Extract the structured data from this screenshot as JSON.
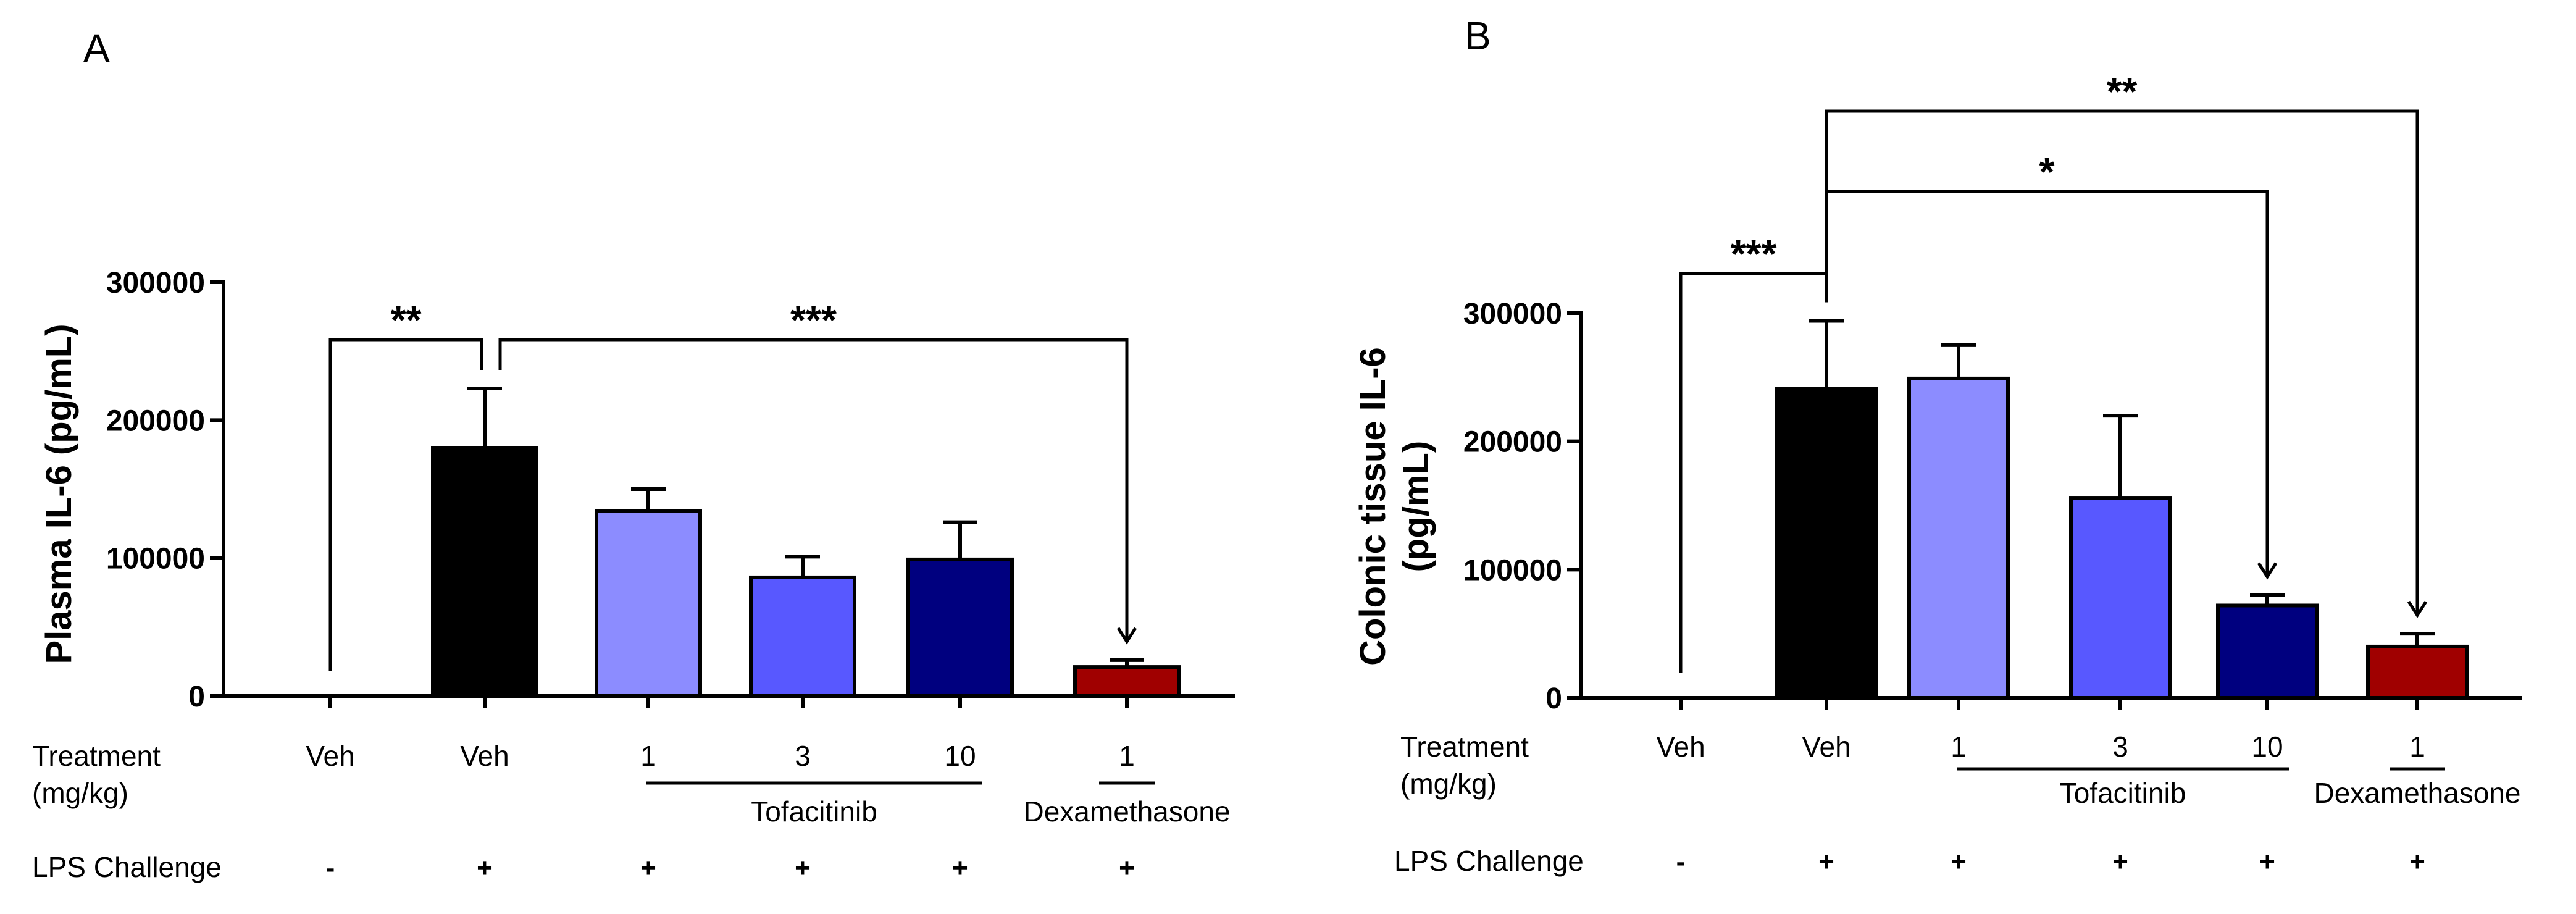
{
  "chart_data": [
    {
      "type": "bar",
      "panel": "A",
      "title": "",
      "ylabel": "Plasma IL-6 (pg/mL)",
      "ylim": [
        0,
        300000
      ],
      "yticks": [
        0,
        100000,
        200000,
        300000
      ],
      "ytick_labels": [
        "0",
        "100000",
        "200000",
        "300000"
      ],
      "treatment_row_label": "Treatment",
      "treatment_row_unit": "(mg/kg)",
      "lps_row_label": "LPS Challenge",
      "categories": [
        "Veh",
        "Veh",
        "1",
        "3",
        "10",
        "1"
      ],
      "values": [
        0,
        180000,
        134000,
        86000,
        99000,
        21000
      ],
      "errors": [
        0,
        43000,
        16000,
        15000,
        27000,
        5000
      ],
      "colors": [
        "#000000",
        "#000000",
        "#8C8CFF",
        "#5858FF",
        "#00007F",
        "#A00000"
      ],
      "lps": [
        "-",
        "+",
        "+",
        "+",
        "+",
        "+"
      ],
      "groups": [
        {
          "label": "Tofacitinib",
          "from": 2,
          "to": 4
        },
        {
          "label": "Dexamethasone",
          "from": 5,
          "to": 5
        }
      ],
      "significance": [
        {
          "from": 0,
          "to": 1,
          "label": "**"
        },
        {
          "from": 1,
          "to": 5,
          "label": "***"
        }
      ]
    },
    {
      "type": "bar",
      "panel": "B",
      "title": "",
      "ylabel_line1": "Colonic tissue IL-6",
      "ylabel_line2": "(pg/mL)",
      "ylim": [
        0,
        300000
      ],
      "yticks": [
        0,
        100000,
        200000,
        300000
      ],
      "ytick_labels": [
        "0",
        "100000",
        "200000",
        "300000"
      ],
      "treatment_row_label": "Treatment",
      "treatment_row_unit": "(mg/kg)",
      "lps_row_label": "LPS Challenge",
      "categories": [
        "Veh",
        "Veh",
        "1",
        "3",
        "10",
        "1"
      ],
      "values": [
        0,
        241000,
        249000,
        156000,
        72000,
        40000
      ],
      "errors": [
        0,
        53000,
        26000,
        64000,
        8000,
        10000
      ],
      "colors": [
        "#000000",
        "#000000",
        "#8C8CFF",
        "#5858FF",
        "#00007F",
        "#A00000"
      ],
      "lps": [
        "-",
        "+",
        "+",
        "+",
        "+",
        "+"
      ],
      "groups": [
        {
          "label": "Tofacitinib",
          "from": 2,
          "to": 4
        },
        {
          "label": "Dexamethasone",
          "from": 5,
          "to": 5
        }
      ],
      "significance": [
        {
          "from": 0,
          "to": 1,
          "label": "***"
        },
        {
          "from": 1,
          "to": 4,
          "label": "*"
        },
        {
          "from": 1,
          "to": 5,
          "label": "**"
        }
      ]
    }
  ]
}
